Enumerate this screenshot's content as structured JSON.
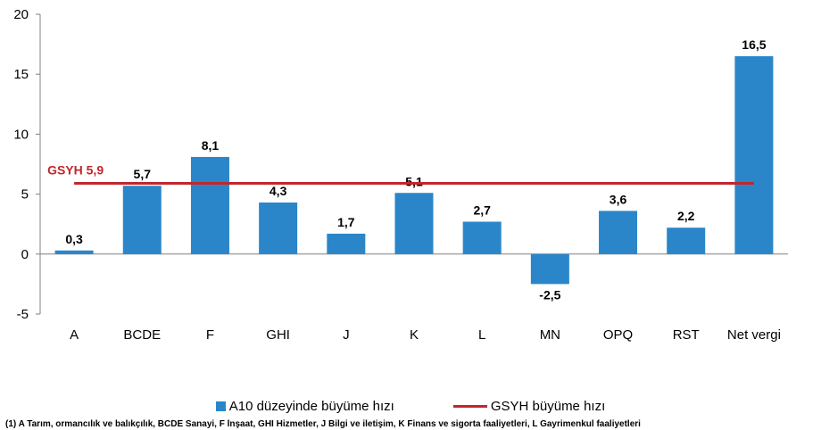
{
  "chart_data": {
    "type": "bar",
    "categories": [
      "A",
      "BCDE",
      "F",
      "GHI",
      "J",
      "K",
      "L",
      "MN",
      "OPQ",
      "RST",
      "Net vergi"
    ],
    "series": [
      {
        "name": "A10 düzeyinde büyüme hızı",
        "values": [
          0.3,
          5.7,
          8.1,
          4.3,
          1.7,
          5.1,
          2.7,
          -2.5,
          3.6,
          2.2,
          16.5
        ],
        "value_labels": [
          "0,3",
          "5,7",
          "8,1",
          "4,3",
          "1,7",
          "5,1",
          "2,7",
          "-2,5",
          "3,6",
          "2,2",
          "16,5"
        ]
      }
    ],
    "reference_line": {
      "name": "GSYH büyüme hızı",
      "value": 5.9,
      "label": "GSYH 5,9"
    },
    "yticks": [
      -5,
      0,
      5,
      10,
      15,
      20
    ],
    "ylim": [
      -5,
      20
    ],
    "grid": false,
    "legend_position": "bottom",
    "colors": {
      "bar": "#2a86c9",
      "line": "#c0272d"
    }
  },
  "legend": {
    "bar_label": "A10 düzeyinde büyüme hızı",
    "line_label": "GSYH büyüme hızı"
  },
  "footnote": "(1) A Tarım, ormancılık ve balıkçılık, BCDE Sanayi, F İnşaat, GHI Hizmetler, J Bilgi ve iletişim, K Finans ve sigorta faaliyetleri, L Gayrimenkul faaliyetleri"
}
